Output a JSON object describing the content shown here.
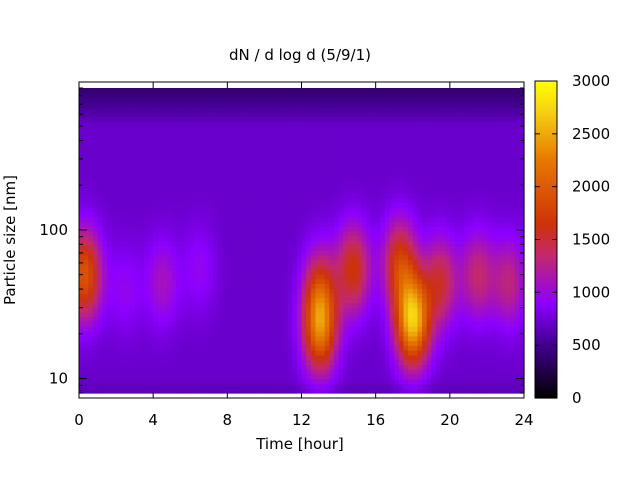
{
  "chart_data": {
    "type": "heatmap",
    "title": "dN / d log d (5/9/1)",
    "xlabel": "Time [hour]",
    "ylabel": "Particle size [nm]",
    "xlim": [
      0,
      24
    ],
    "ylim": [
      8,
      900
    ],
    "y_scale": "log",
    "x_ticks": [
      0,
      4,
      8,
      12,
      16,
      20,
      24
    ],
    "y_ticks": [
      10,
      100
    ],
    "colorbar": {
      "range": [
        0,
        3000
      ],
      "ticks": [
        0,
        500,
        1000,
        1500,
        2000,
        2500,
        3000
      ],
      "palette": "black-purple-red-orange-yellow"
    },
    "background_level": 720,
    "features": [
      {
        "time": 0.3,
        "size": 50,
        "peak": 1950
      },
      {
        "time": 2.5,
        "size": 40,
        "peak": 950
      },
      {
        "time": 4.5,
        "size": 45,
        "peak": 1100
      },
      {
        "time": 6.5,
        "size": 55,
        "peak": 950
      },
      {
        "time": 13.0,
        "size": 22,
        "peak": 2100
      },
      {
        "time": 13.0,
        "size": 40,
        "peak": 1450
      },
      {
        "time": 14.8,
        "size": 55,
        "peak": 1650
      },
      {
        "time": 17.3,
        "size": 60,
        "peak": 1700
      },
      {
        "time": 18.0,
        "size": 25,
        "peak": 2650
      },
      {
        "time": 19.5,
        "size": 45,
        "peak": 1500
      },
      {
        "time": 21.5,
        "size": 50,
        "peak": 1350
      },
      {
        "time": 23.2,
        "size": 45,
        "peak": 1300
      }
    ],
    "colors": {
      "axis": "#000000",
      "missing": "#ffffff"
    }
  }
}
